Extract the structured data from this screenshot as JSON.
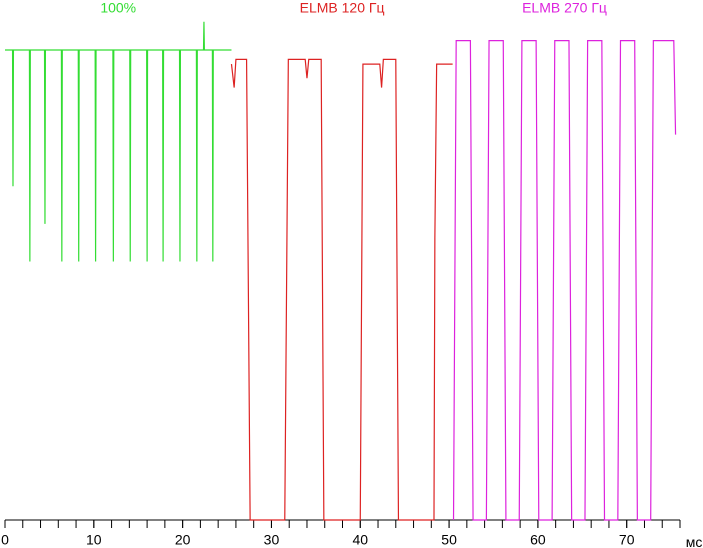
{
  "chart_data": {
    "type": "line",
    "xlabel": "мс",
    "xlim": [
      0,
      76
    ],
    "ylim": [
      0,
      110
    ],
    "xticks": [
      0,
      10,
      20,
      30,
      40,
      50,
      60,
      70
    ],
    "xminorticks": [
      0,
      2,
      4,
      6,
      8,
      10,
      12,
      14,
      16,
      18,
      20,
      22,
      24,
      26,
      28,
      30,
      32,
      34,
      36,
      38,
      40,
      42,
      44,
      46,
      48,
      50,
      52,
      54,
      56,
      58,
      60,
      62,
      64,
      66,
      68,
      70,
      72,
      74,
      76
    ],
    "series": [
      {
        "name": "100%",
        "color": "#33dd33",
        "x": [
          0,
          0.85,
          0.9,
          0.95,
          2.75,
          2.8,
          2.85,
          4.45,
          4.5,
          4.55,
          6.35,
          6.4,
          6.45,
          8.25,
          8.3,
          8.35,
          10.15,
          10.2,
          10.25,
          12.15,
          12.2,
          12.25,
          14.05,
          14.1,
          14.15,
          15.95,
          16.0,
          16.05,
          17.75,
          17.8,
          17.85,
          19.65,
          19.7,
          19.75,
          21.55,
          21.6,
          21.65,
          22.35,
          22.4,
          22.45,
          23.35,
          23.4,
          23.45,
          25.5
        ],
        "values": [
          100,
          100,
          71,
          100,
          100,
          55,
          100,
          100,
          63,
          100,
          100,
          55,
          100,
          100,
          55,
          100,
          100,
          55,
          100,
          100,
          55,
          100,
          100,
          55,
          100,
          100,
          55,
          100,
          100,
          55,
          100,
          100,
          55,
          100,
          100,
          55,
          100,
          100,
          106,
          100,
          100,
          55,
          100,
          100
        ]
      },
      {
        "name": "ELMB 120 Гц",
        "color": "#dd2222",
        "x": [
          25.5,
          25.8,
          26.0,
          27.2,
          27.6,
          31.5,
          31.9,
          33.8,
          34.0,
          34.2,
          35.6,
          35.9,
          40.0,
          40.3,
          42.2,
          42.4,
          42.6,
          44.0,
          44.3,
          48.3,
          48.4,
          48.6,
          50.4
        ],
        "values": [
          97,
          92,
          98,
          98,
          0,
          0,
          98,
          98,
          94,
          98,
          98,
          0,
          0,
          97,
          97,
          92,
          98,
          98,
          0,
          0,
          60,
          97,
          97
        ]
      },
      {
        "name": "ELMB 270 Гц",
        "color": "#dd22dd",
        "x": [
          50.5,
          50.8,
          52.4,
          52.7,
          54.2,
          54.5,
          56.1,
          56.4,
          57.9,
          58.2,
          59.8,
          60.1,
          61.6,
          61.9,
          63.5,
          63.8,
          65.3,
          65.6,
          67.2,
          67.5,
          69.0,
          69.3,
          70.9,
          71.2,
          72.7,
          73.0,
          75.3,
          75.5
        ],
        "values": [
          0,
          102,
          102,
          0,
          0,
          102,
          102,
          0,
          0,
          102,
          102,
          0,
          0,
          102,
          102,
          0,
          0,
          102,
          102,
          0,
          0,
          102,
          102,
          0,
          0,
          102,
          102,
          82
        ]
      }
    ]
  }
}
